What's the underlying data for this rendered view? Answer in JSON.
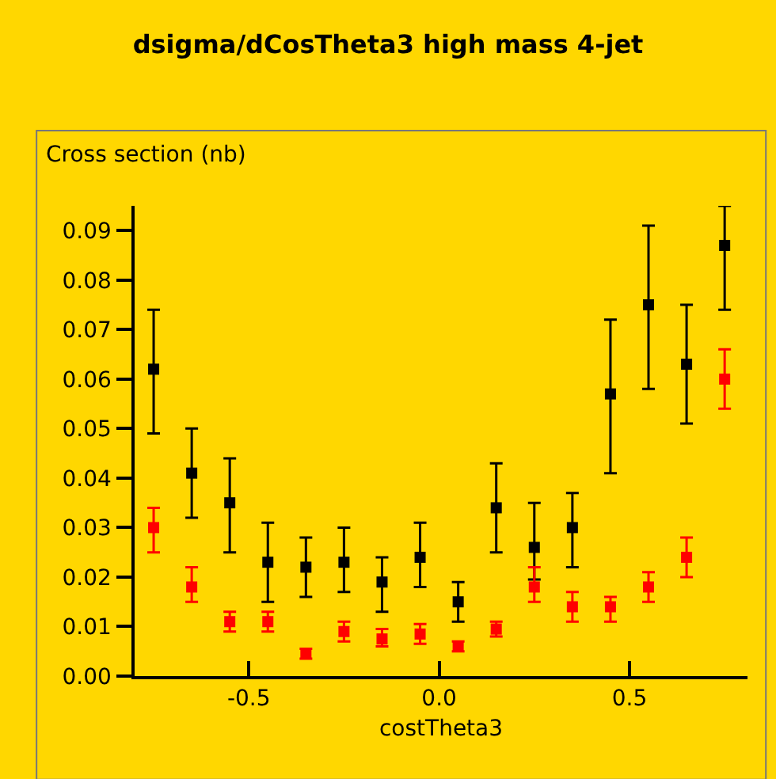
{
  "chart_data": {
    "type": "scatter",
    "title": "dsigma/dCosTheta3 high mass 4-jet",
    "xlabel": "costTheta3",
    "ylabel": "Cross section (nb)",
    "x": [
      -0.75,
      -0.65,
      -0.55,
      -0.45,
      -0.35,
      -0.25,
      -0.15,
      -0.05,
      0.05,
      0.15,
      0.25,
      0.35,
      0.45,
      0.55,
      0.65,
      0.75
    ],
    "series": [
      {
        "color": "#000000",
        "values": [
          0.062,
          0.041,
          0.035,
          0.023,
          0.022,
          0.023,
          0.019,
          0.024,
          0.015,
          0.034,
          0.026,
          0.03,
          0.057,
          0.075,
          0.063,
          0.087
        ],
        "errors": [
          [
            0.049,
            0.074
          ],
          [
            0.032,
            0.05
          ],
          [
            0.025,
            0.044
          ],
          [
            0.015,
            0.031
          ],
          [
            0.016,
            0.028
          ],
          [
            0.017,
            0.03
          ],
          [
            0.013,
            0.024
          ],
          [
            0.018,
            0.031
          ],
          [
            0.011,
            0.019
          ],
          [
            0.025,
            0.043
          ],
          [
            0.0195,
            0.035
          ],
          [
            0.022,
            0.037
          ],
          [
            0.041,
            0.072
          ],
          [
            0.058,
            0.091
          ],
          [
            0.051,
            0.075
          ],
          [
            0.074,
            0.095
          ]
        ]
      },
      {
        "color": "#ff0000",
        "values": [
          0.03,
          0.018,
          0.011,
          0.011,
          0.0045,
          0.009,
          0.0075,
          0.0085,
          0.006,
          0.0095,
          0.018,
          0.014,
          0.014,
          0.018,
          0.024,
          0.06
        ],
        "errors": [
          [
            0.025,
            0.034
          ],
          [
            0.015,
            0.022
          ],
          [
            0.009,
            0.013
          ],
          [
            0.009,
            0.013
          ],
          [
            0.0035,
            0.0055
          ],
          [
            0.007,
            0.011
          ],
          [
            0.006,
            0.0095
          ],
          [
            0.0065,
            0.0105
          ],
          [
            0.005,
            0.007
          ],
          [
            0.008,
            0.011
          ],
          [
            0.015,
            0.022
          ],
          [
            0.011,
            0.017
          ],
          [
            0.011,
            0.016
          ],
          [
            0.015,
            0.021
          ],
          [
            0.02,
            0.028
          ],
          [
            0.054,
            0.066
          ]
        ]
      }
    ],
    "xlim": [
      -0.8,
      0.81
    ],
    "ylim": [
      0,
      0.095
    ],
    "xticks": [
      {
        "value": -0.5,
        "label": "-0.5"
      },
      {
        "value": 0,
        "label": "0.0"
      },
      {
        "value": 0.5,
        "label": "0.5"
      }
    ],
    "yticks": [
      {
        "value": 0,
        "label": "0.00"
      },
      {
        "value": 0.01,
        "label": "0.01"
      },
      {
        "value": 0.02,
        "label": "0.02"
      },
      {
        "value": 0.03,
        "label": "0.03"
      },
      {
        "value": 0.04,
        "label": "0.04"
      },
      {
        "value": 0.05,
        "label": "0.05"
      },
      {
        "value": 0.06,
        "label": "0.06"
      },
      {
        "value": 0.07,
        "label": "0.07"
      },
      {
        "value": 0.08,
        "label": "0.08"
      },
      {
        "value": 0.09,
        "label": "0.09"
      }
    ],
    "marker": "square"
  }
}
